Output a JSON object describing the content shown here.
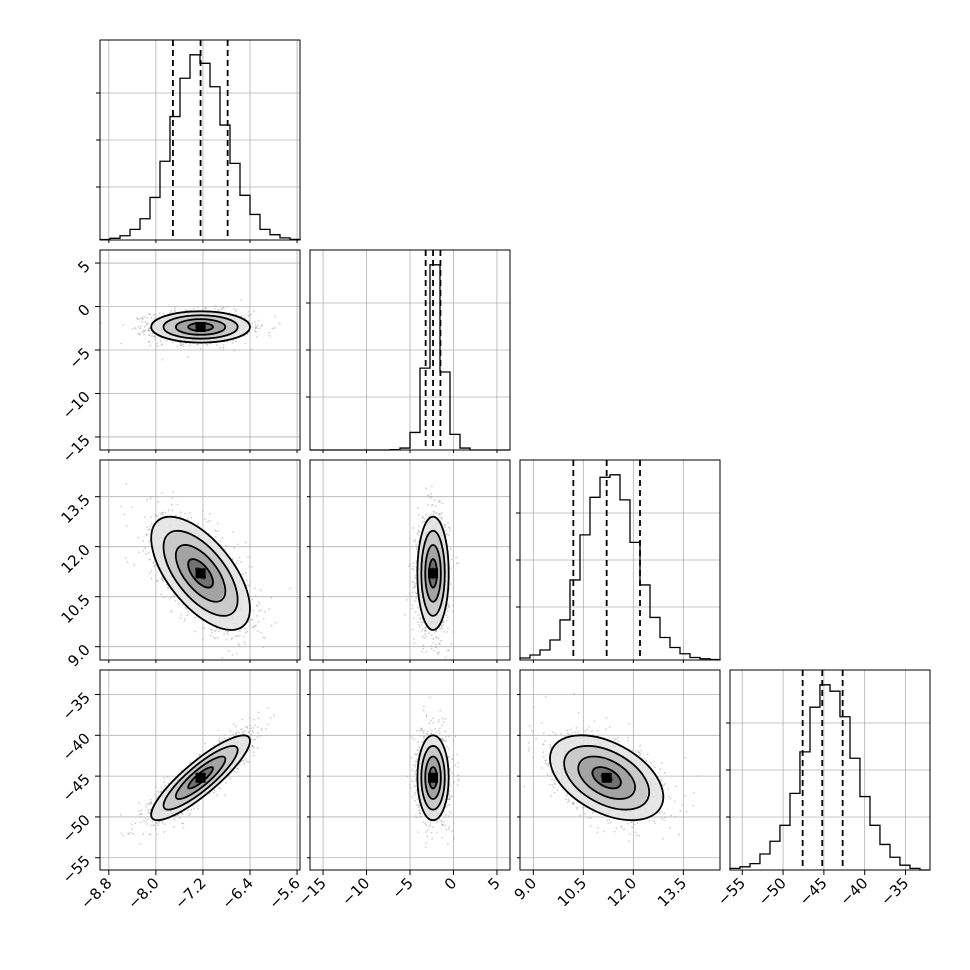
{
  "chart_data": {
    "type": "corner",
    "grid": true,
    "parameters": [
      {
        "range": [
          -8.95,
          -5.55
        ],
        "ticks": [
          -8.8,
          -8.0,
          -7.2,
          -6.4,
          -5.6
        ],
        "tick_labels": [
          "−8.8",
          "−8.0",
          "−7.2",
          "−6.4",
          "−5.6"
        ]
      },
      {
        "range": [
          -16.5,
          6.5
        ],
        "ticks": [
          -15,
          -10,
          -5,
          0,
          5
        ],
        "tick_labels": [
          "−15",
          "−10",
          "−5",
          "0",
          "5"
        ]
      },
      {
        "range": [
          8.6,
          14.6
        ],
        "ticks": [
          9.0,
          10.5,
          12.0,
          13.5
        ],
        "tick_labels": [
          "9.0",
          "10.5",
          "12.0",
          "13.5"
        ]
      },
      {
        "range": [
          -56.5,
          -32.0
        ],
        "ticks": [
          -55,
          -50,
          -45,
          -40,
          -35
        ],
        "tick_labels": [
          "−55",
          "−50",
          "−45",
          "−40",
          "−35"
        ]
      }
    ],
    "marginals": [
      {
        "param": 0,
        "edges": [
          -8.95,
          -8.78,
          -8.61,
          -8.44,
          -8.27,
          -8.1,
          -7.93,
          -7.76,
          -7.59,
          -7.42,
          -7.25,
          -7.08,
          -6.91,
          -6.74,
          -6.57,
          -6.4,
          -6.23,
          -6.06,
          -5.89,
          -5.72,
          -5.55
        ],
        "counts": [
          0.2,
          0.8,
          2,
          5,
          10,
          20,
          37,
          58,
          76,
          87,
          83,
          72,
          54,
          36,
          21,
          12,
          5,
          2.5,
          1,
          0.3
        ],
        "quantiles": [
          -7.71,
          -7.24,
          -6.78
        ]
      },
      {
        "param": 1,
        "edges": [
          -16.5,
          -15.35,
          -14.2,
          -13.05,
          -11.9,
          -10.75,
          -9.6,
          -8.45,
          -7.3,
          -6.15,
          -5.0,
          -3.85,
          -2.7,
          -1.55,
          -0.4,
          0.75,
          1.9,
          3.05,
          4.2,
          5.35,
          6.5
        ],
        "counts": [
          0,
          0,
          0,
          0,
          0,
          0,
          0,
          0,
          0.2,
          1,
          9,
          42,
          95,
          40,
          8,
          1,
          0,
          0,
          0,
          0
        ],
        "quantiles": [
          -3.2,
          -2.35,
          -1.5
        ]
      },
      {
        "param": 2,
        "edges": [
          8.6,
          8.9,
          9.2,
          9.5,
          9.8,
          10.1,
          10.4,
          10.7,
          11.0,
          11.3,
          11.6,
          11.9,
          12.2,
          12.5,
          12.8,
          13.1,
          13.4,
          13.7,
          14.0,
          14.3,
          14.6
        ],
        "counts": [
          0.8,
          2,
          4,
          8,
          16,
          32,
          50,
          65,
          73,
          74,
          64,
          47,
          30,
          17,
          9,
          5,
          2.5,
          1,
          0.5,
          0.2
        ],
        "quantiles": [
          10.2,
          11.2,
          12.2
        ]
      },
      {
        "param": 3,
        "edges": [
          -56.5,
          -55.28,
          -54.05,
          -52.83,
          -51.6,
          -50.38,
          -49.15,
          -47.93,
          -46.7,
          -45.48,
          -44.25,
          -43.03,
          -41.8,
          -40.58,
          -39.35,
          -38.13,
          -36.9,
          -35.68,
          -34.45,
          -33.23,
          -32.0
        ],
        "counts": [
          0.5,
          1,
          2,
          5,
          9,
          14,
          24,
          37,
          51,
          58,
          56,
          48,
          35,
          23,
          14,
          8,
          4,
          1.5,
          0.5,
          0
        ],
        "quantiles": [
          -47.6,
          -45.2,
          -42.7
        ]
      }
    ],
    "joint": [
      {
        "row": 1,
        "col": 0,
        "center": [
          -7.24,
          -2.35
        ],
        "sd": [
          0.42,
          0.9
        ],
        "rho": 0.0
      },
      {
        "row": 2,
        "col": 0,
        "center": [
          -7.24,
          11.2
        ],
        "sd": [
          0.42,
          0.85
        ],
        "rho": -0.62
      },
      {
        "row": 2,
        "col": 1,
        "center": [
          -2.35,
          11.2
        ],
        "sd": [
          0.9,
          0.85
        ],
        "rho": 0.0
      },
      {
        "row": 3,
        "col": 0,
        "center": [
          -7.24,
          -45.2
        ],
        "sd": [
          0.42,
          2.6
        ],
        "rho": 0.87
      },
      {
        "row": 3,
        "col": 1,
        "center": [
          -2.35,
          -45.2
        ],
        "sd": [
          0.9,
          2.6
        ],
        "rho": 0.0
      },
      {
        "row": 3,
        "col": 2,
        "center": [
          11.2,
          -45.2
        ],
        "sd": [
          0.85,
          2.6
        ],
        "rho": -0.45
      }
    ],
    "contour_levels_sigma": [
      0.5,
      1.0,
      1.5,
      2.0
    ]
  }
}
